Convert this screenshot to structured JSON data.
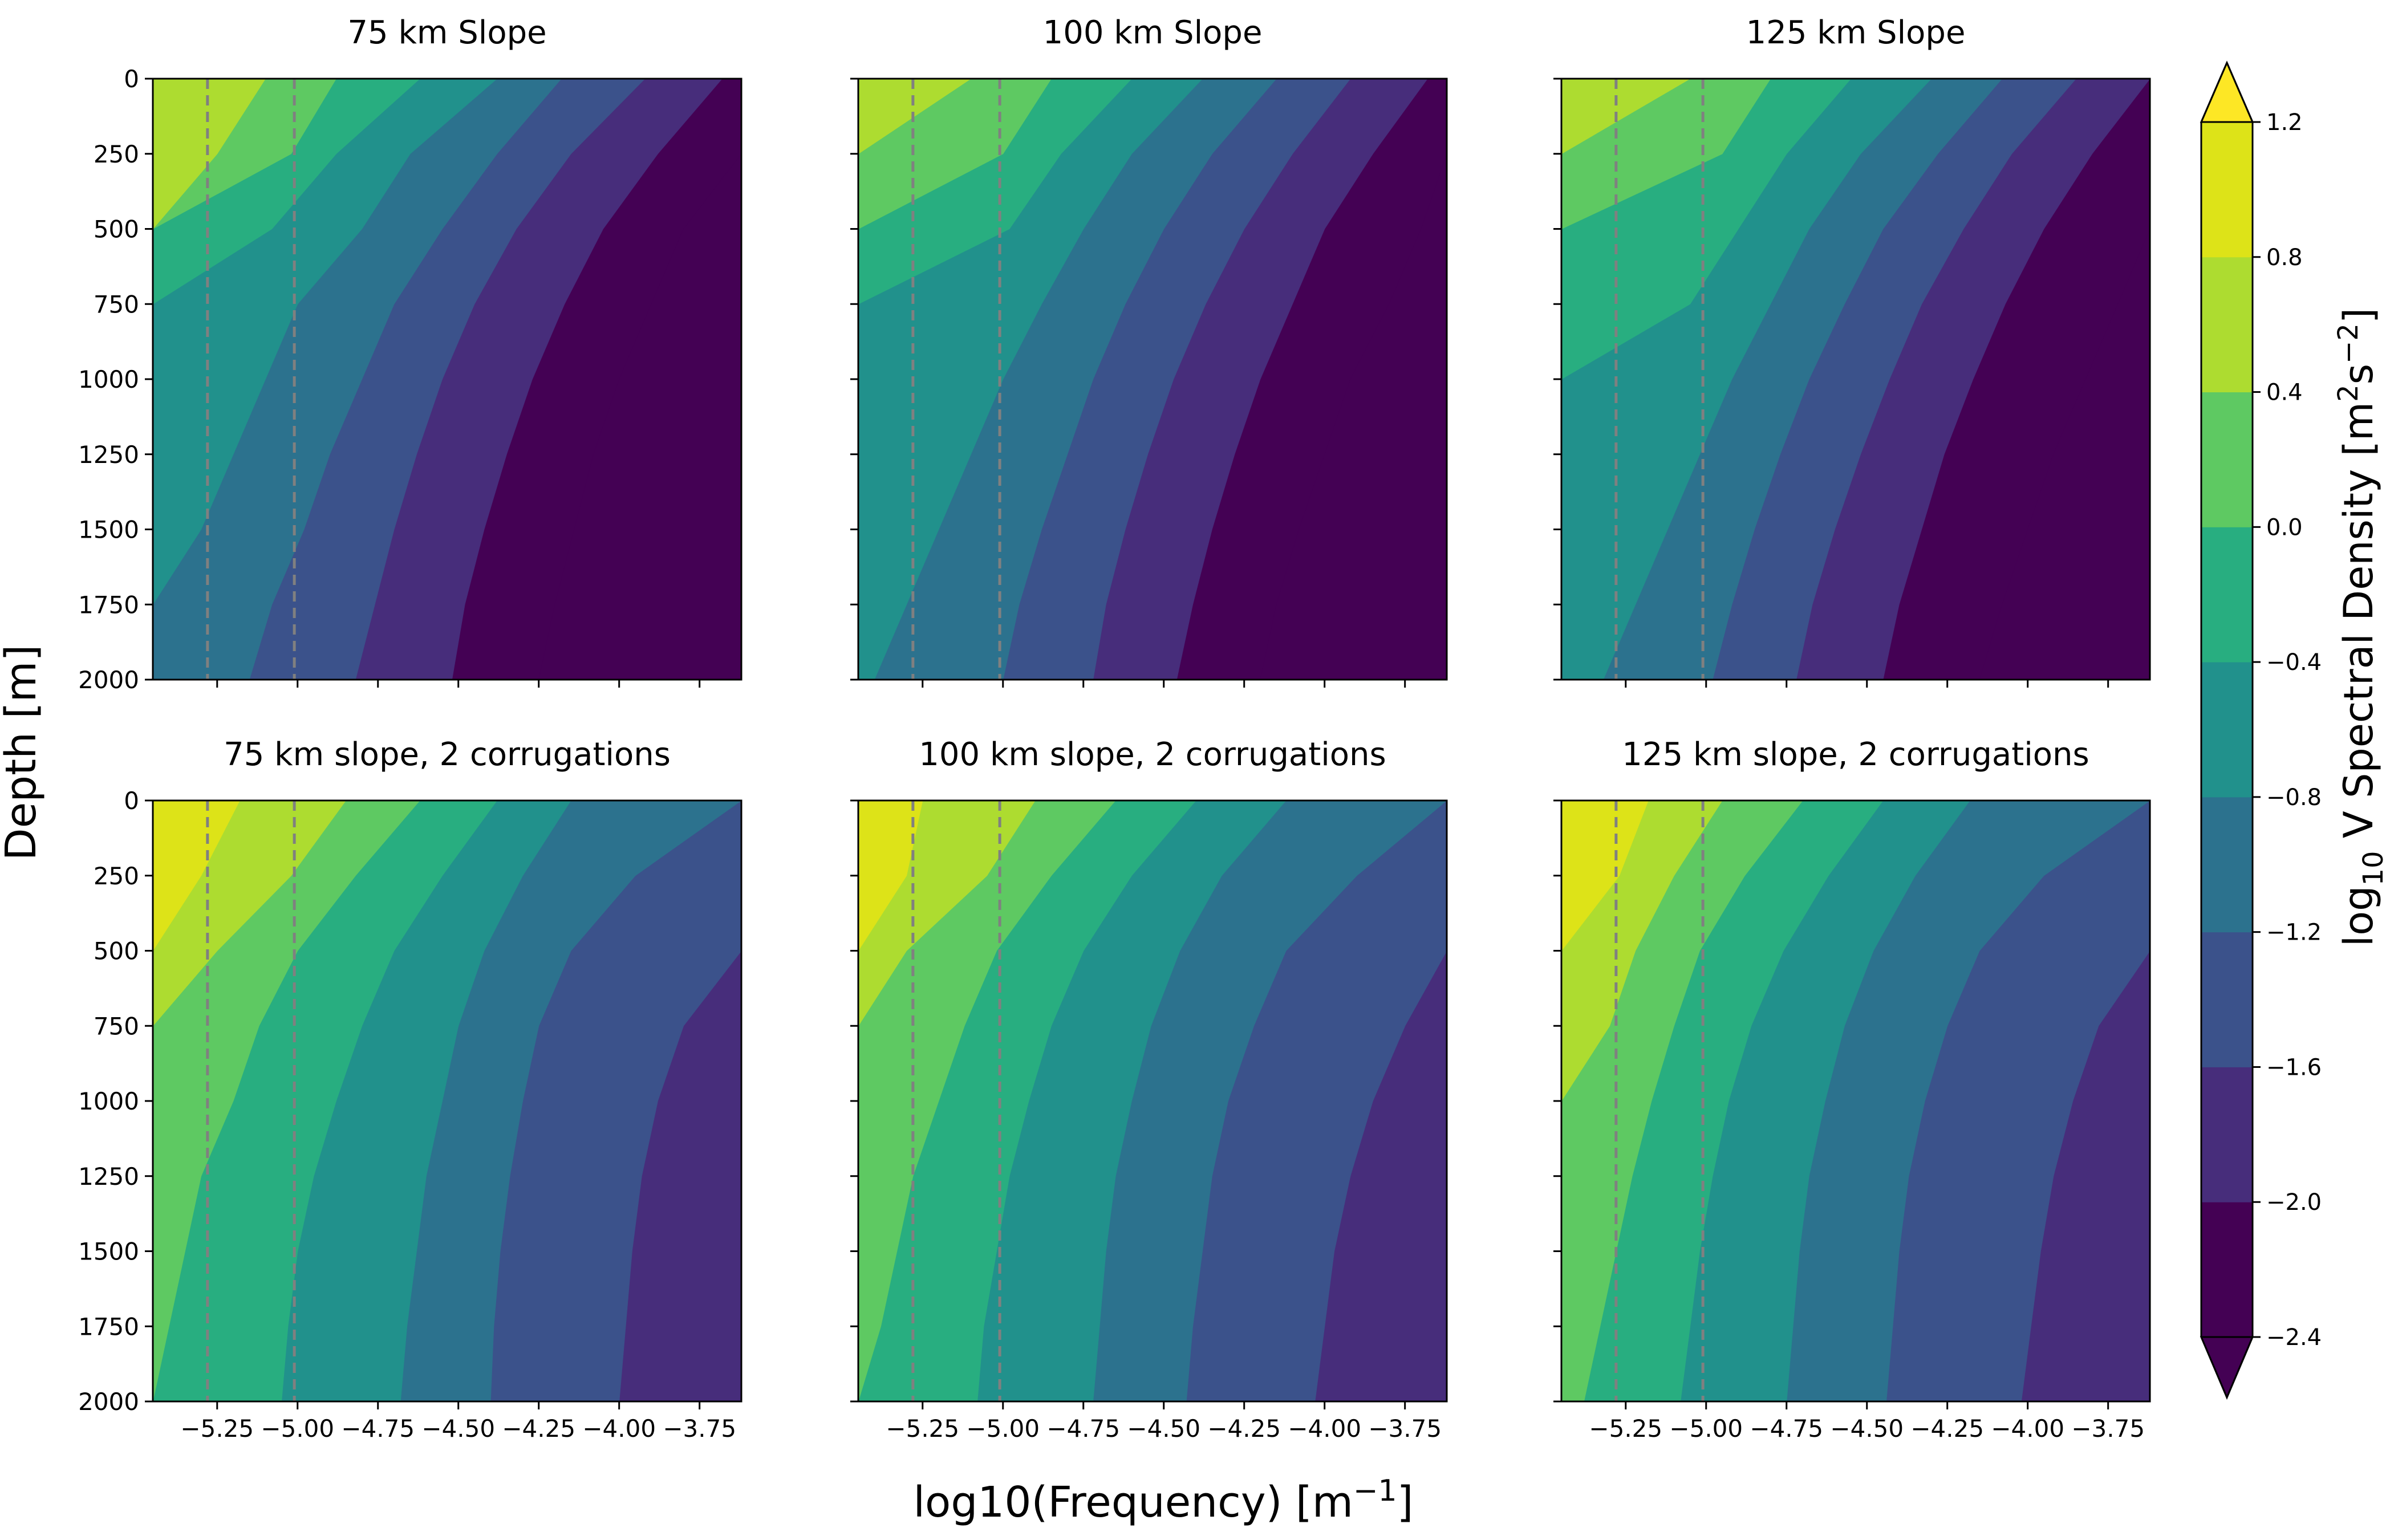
{
  "figure": {
    "ylabel": "Depth [m]",
    "xlabel_main": "log10(Frequency) [m",
    "xlabel_sup": "−1",
    "xlabel_end": "]"
  },
  "colorbar": {
    "label_pre": "log",
    "label_sub": "10",
    "label_mid": " V Spectral Density [m",
    "label_sup1": "2",
    "label_s": "s",
    "label_sup2": "−2",
    "label_end": "]",
    "levels": [
      -2.4,
      -2.0,
      -1.6,
      -1.2,
      -0.8,
      -0.4,
      0.0,
      0.4,
      0.8,
      1.2
    ],
    "tick_labels": [
      "−2.4",
      "−2.0",
      "−1.6",
      "−1.2",
      "−0.8",
      "−0.4",
      "0.0",
      "0.4",
      "0.8",
      "1.2"
    ],
    "band_colors": [
      "#440154",
      "#472d7b",
      "#3b528b",
      "#2c728e",
      "#21918c",
      "#28ae80",
      "#5ec962",
      "#addc30",
      "#dde318"
    ],
    "extend_under_color": "#440154",
    "extend_over_color": "#fde725"
  },
  "chart_data": [
    {
      "type": "contourf",
      "title": "75 km Slope",
      "xlabel": "",
      "ylabel": "Depth [m]",
      "xlim": [
        -5.45,
        -3.62
      ],
      "ylim": [
        2000,
        0
      ],
      "xticks": [
        -5.25,
        -5.0,
        -4.75,
        -4.5,
        -4.25,
        -4.0,
        -3.75
      ],
      "xtick_labels": [],
      "yticks": [
        0,
        250,
        500,
        750,
        1000,
        1250,
        1500,
        1750,
        2000
      ],
      "ytick_labels": [
        "0",
        "250",
        "500",
        "750",
        "1000",
        "1250",
        "1500",
        "1750",
        "2000"
      ],
      "vlines": [
        -5.28,
        -5.01
      ],
      "depth_samples": [
        0,
        250,
        500,
        750,
        1000,
        1250,
        1500,
        1750,
        2000
      ],
      "contour_boundaries": [
        {
          "upper_level": 0.8,
          "x": [
            -5.1,
            -5.25,
            -5.45,
            -5.45,
            -5.45,
            -5.45,
            -5.45,
            -5.45,
            -5.45
          ]
        },
        {
          "upper_level": 0.4,
          "x": [
            -4.88,
            -5.02,
            -5.45,
            -5.45,
            -5.45,
            -5.45,
            -5.45,
            -5.45,
            -5.45
          ]
        },
        {
          "upper_level": 0.0,
          "x": [
            -4.62,
            -4.88,
            -5.08,
            -5.45,
            -5.45,
            -5.45,
            -5.45,
            -5.45,
            -5.45
          ]
        },
        {
          "upper_level": -0.4,
          "x": [
            -4.38,
            -4.65,
            -4.8,
            -5.0,
            -5.1,
            -5.2,
            -5.3,
            -5.45,
            -5.45
          ]
        },
        {
          "upper_level": -0.8,
          "x": [
            -4.18,
            -4.38,
            -4.55,
            -4.7,
            -4.8,
            -4.9,
            -4.98,
            -5.08,
            -5.15
          ]
        },
        {
          "upper_level": -1.2,
          "x": [
            -3.92,
            -4.15,
            -4.32,
            -4.45,
            -4.55,
            -4.63,
            -4.7,
            -4.76,
            -4.82
          ]
        },
        {
          "upper_level": -1.6,
          "x": [
            -3.68,
            -3.88,
            -4.05,
            -4.17,
            -4.27,
            -4.35,
            -4.42,
            -4.48,
            -4.52
          ]
        },
        {
          "upper_level": -2.0,
          "x": [
            -3.62,
            -3.62,
            -3.8,
            -3.9,
            -4.0,
            -4.08,
            -4.14,
            -4.2,
            -4.25
          ]
        }
      ]
    },
    {
      "type": "contourf",
      "title": "100 km Slope",
      "xlabel": "",
      "ylabel": "",
      "xlim": [
        -5.45,
        -3.62
      ],
      "ylim": [
        2000,
        0
      ],
      "xticks": [
        -5.25,
        -5.0,
        -4.75,
        -4.5,
        -4.25,
        -4.0,
        -3.75
      ],
      "xtick_labels": [],
      "yticks": [
        0,
        250,
        500,
        750,
        1000,
        1250,
        1500,
        1750,
        2000
      ],
      "ytick_labels": [],
      "vlines": [
        -5.28,
        -5.01
      ],
      "depth_samples": [
        0,
        250,
        500,
        750,
        1000,
        1250,
        1500,
        1750,
        2000
      ],
      "contour_boundaries": [
        {
          "upper_level": 0.8,
          "x": [
            -5.1,
            -5.45,
            -5.45,
            -5.45,
            -5.45,
            -5.45,
            -5.45,
            -5.45,
            -5.45
          ]
        },
        {
          "upper_level": 0.4,
          "x": [
            -4.85,
            -5.0,
            -5.45,
            -5.45,
            -5.45,
            -5.45,
            -5.45,
            -5.45,
            -5.45
          ]
        },
        {
          "upper_level": 0.0,
          "x": [
            -4.6,
            -4.82,
            -4.98,
            -5.45,
            -5.45,
            -5.45,
            -5.45,
            -5.45,
            -5.45
          ]
        },
        {
          "upper_level": -0.4,
          "x": [
            -4.38,
            -4.6,
            -4.75,
            -4.88,
            -5.0,
            -5.1,
            -5.2,
            -5.3,
            -5.4
          ]
        },
        {
          "upper_level": -0.8,
          "x": [
            -4.15,
            -4.35,
            -4.5,
            -4.62,
            -4.72,
            -4.8,
            -4.88,
            -4.95,
            -5.0
          ]
        },
        {
          "upper_level": -1.2,
          "x": [
            -3.92,
            -4.1,
            -4.25,
            -4.37,
            -4.47,
            -4.55,
            -4.62,
            -4.68,
            -4.72
          ]
        },
        {
          "upper_level": -1.6,
          "x": [
            -3.68,
            -3.85,
            -4.0,
            -4.1,
            -4.2,
            -4.28,
            -4.35,
            -4.41,
            -4.46
          ]
        },
        {
          "upper_level": -2.0,
          "x": [
            -3.62,
            -3.62,
            -3.7,
            -3.8,
            -3.92,
            -4.0,
            -4.08,
            -4.15,
            -4.2
          ]
        }
      ]
    },
    {
      "type": "contourf",
      "title": "125 km Slope",
      "xlabel": "",
      "ylabel": "",
      "xlim": [
        -5.45,
        -3.62
      ],
      "ylim": [
        2000,
        0
      ],
      "xticks": [
        -5.25,
        -5.0,
        -4.75,
        -4.5,
        -4.25,
        -4.0,
        -3.75
      ],
      "xtick_labels": [],
      "yticks": [
        0,
        250,
        500,
        750,
        1000,
        1250,
        1500,
        1750,
        2000
      ],
      "ytick_labels": [],
      "vlines": [
        -5.28,
        -5.01
      ],
      "depth_samples": [
        0,
        250,
        500,
        750,
        1000,
        1250,
        1500,
        1750,
        2000
      ],
      "contour_boundaries": [
        {
          "upper_level": 0.8,
          "x": [
            -5.05,
            -5.45,
            -5.45,
            -5.45,
            -5.45,
            -5.45,
            -5.45,
            -5.45,
            -5.45
          ]
        },
        {
          "upper_level": 0.4,
          "x": [
            -4.8,
            -4.95,
            -5.45,
            -5.45,
            -5.45,
            -5.45,
            -5.45,
            -5.45,
            -5.45
          ]
        },
        {
          "upper_level": 0.0,
          "x": [
            -4.55,
            -4.75,
            -4.9,
            -5.05,
            -5.45,
            -5.45,
            -5.45,
            -5.45,
            -5.45
          ]
        },
        {
          "upper_level": -0.4,
          "x": [
            -4.3,
            -4.52,
            -4.68,
            -4.8,
            -4.92,
            -5.02,
            -5.12,
            -5.22,
            -5.32
          ]
        },
        {
          "upper_level": -0.8,
          "x": [
            -4.08,
            -4.28,
            -4.45,
            -4.57,
            -4.68,
            -4.77,
            -4.85,
            -4.92,
            -4.98
          ]
        },
        {
          "upper_level": -1.2,
          "x": [
            -3.85,
            -4.05,
            -4.2,
            -4.33,
            -4.43,
            -4.52,
            -4.6,
            -4.67,
            -4.72
          ]
        },
        {
          "upper_level": -1.6,
          "x": [
            -3.62,
            -3.8,
            -3.95,
            -4.07,
            -4.17,
            -4.26,
            -4.33,
            -4.4,
            -4.45
          ]
        },
        {
          "upper_level": -2.0,
          "x": [
            -3.62,
            -3.62,
            -3.62,
            -3.72,
            -3.82,
            -3.92,
            -4.0,
            -4.08,
            -4.15
          ]
        }
      ]
    },
    {
      "type": "contourf",
      "title": "75 km slope, 2 corrugations",
      "xlabel": "",
      "ylabel": "Depth [m]",
      "xlim": [
        -5.45,
        -3.62
      ],
      "ylim": [
        2000,
        0
      ],
      "xticks": [
        -5.25,
        -5.0,
        -4.75,
        -4.5,
        -4.25,
        -4.0,
        -3.75
      ],
      "xtick_labels": [
        "−5.25",
        "−5.00",
        "−4.75",
        "−4.50",
        "−4.25",
        "−4.00",
        "−3.75"
      ],
      "yticks": [
        0,
        250,
        500,
        750,
        1000,
        1250,
        1500,
        1750,
        2000
      ],
      "ytick_labels": [
        "0",
        "250",
        "500",
        "750",
        "1000",
        "1250",
        "1500",
        "1750",
        "2000"
      ],
      "vlines": [
        -5.28,
        -5.01
      ],
      "depth_samples": [
        0,
        250,
        500,
        750,
        1000,
        1250,
        1500,
        1750,
        2000
      ],
      "contour_boundaries": [
        {
          "upper_level": 1.2,
          "x": [
            -5.18,
            -5.3,
            -5.45,
            -5.45,
            -5.45,
            -5.45,
            -5.45,
            -5.45,
            -5.45
          ]
        },
        {
          "upper_level": 0.8,
          "x": [
            -4.85,
            -5.02,
            -5.25,
            -5.45,
            -5.45,
            -5.45,
            -5.45,
            -5.45,
            -5.45
          ]
        },
        {
          "upper_level": 0.4,
          "x": [
            -4.62,
            -4.82,
            -5.0,
            -5.12,
            -5.2,
            -5.3,
            -5.35,
            -5.4,
            -5.45
          ]
        },
        {
          "upper_level": 0.0,
          "x": [
            -4.38,
            -4.55,
            -4.7,
            -4.8,
            -4.88,
            -4.95,
            -5.0,
            -5.03,
            -5.05
          ]
        },
        {
          "upper_level": -0.4,
          "x": [
            -4.15,
            -4.3,
            -4.42,
            -4.5,
            -4.55,
            -4.6,
            -4.63,
            -4.66,
            -4.68
          ]
        },
        {
          "upper_level": -0.8,
          "x": [
            -3.62,
            -3.95,
            -4.15,
            -4.25,
            -4.3,
            -4.34,
            -4.37,
            -4.39,
            -4.4
          ]
        },
        {
          "upper_level": -1.2,
          "x": [
            -3.62,
            -3.62,
            -3.62,
            -3.8,
            -3.88,
            -3.93,
            -3.96,
            -3.98,
            -4.0
          ]
        }
      ]
    },
    {
      "type": "contourf",
      "title": "100 km slope, 2 corrugations",
      "xlabel": "",
      "ylabel": "",
      "xlim": [
        -5.45,
        -3.62
      ],
      "ylim": [
        2000,
        0
      ],
      "xticks": [
        -5.25,
        -5.0,
        -4.75,
        -4.5,
        -4.25,
        -4.0,
        -3.75
      ],
      "xtick_labels": [
        "−5.25",
        "−5.00",
        "−4.75",
        "−4.50",
        "−4.25",
        "−4.00",
        "−3.75"
      ],
      "yticks": [
        0,
        250,
        500,
        750,
        1000,
        1250,
        1500,
        1750,
        2000
      ],
      "ytick_labels": [],
      "vlines": [
        -5.28,
        -5.01
      ],
      "depth_samples": [
        0,
        250,
        500,
        750,
        1000,
        1250,
        1500,
        1750,
        2000
      ],
      "contour_boundaries": [
        {
          "upper_level": 1.2,
          "x": [
            -5.25,
            -5.3,
            -5.45,
            -5.45,
            -5.45,
            -5.45,
            -5.45,
            -5.45,
            -5.45
          ]
        },
        {
          "upper_level": 0.8,
          "x": [
            -4.9,
            -5.05,
            -5.3,
            -5.45,
            -5.45,
            -5.45,
            -5.45,
            -5.45,
            -5.45
          ]
        },
        {
          "upper_level": 0.4,
          "x": [
            -4.65,
            -4.85,
            -5.02,
            -5.12,
            -5.2,
            -5.28,
            -5.33,
            -5.38,
            -5.45
          ]
        },
        {
          "upper_level": 0.0,
          "x": [
            -4.4,
            -4.6,
            -4.75,
            -4.85,
            -4.92,
            -4.98,
            -5.02,
            -5.06,
            -5.08
          ]
        },
        {
          "upper_level": -0.4,
          "x": [
            -4.12,
            -4.32,
            -4.45,
            -4.54,
            -4.6,
            -4.65,
            -4.68,
            -4.7,
            -4.72
          ]
        },
        {
          "upper_level": -0.8,
          "x": [
            -3.62,
            -3.9,
            -4.12,
            -4.22,
            -4.3,
            -4.35,
            -4.38,
            -4.41,
            -4.43
          ]
        },
        {
          "upper_level": -1.2,
          "x": [
            -3.62,
            -3.62,
            -3.62,
            -3.75,
            -3.85,
            -3.92,
            -3.97,
            -4.0,
            -4.03
          ]
        }
      ]
    },
    {
      "type": "contourf",
      "title": "125 km slope, 2 corrugations",
      "xlabel": "",
      "ylabel": "",
      "xlim": [
        -5.45,
        -3.62
      ],
      "ylim": [
        2000,
        0
      ],
      "xticks": [
        -5.25,
        -5.0,
        -4.75,
        -4.5,
        -4.25,
        -4.0,
        -3.75
      ],
      "xtick_labels": [
        "−5.25",
        "−5.00",
        "−4.75",
        "−4.50",
        "−4.25",
        "−4.00",
        "−3.75"
      ],
      "yticks": [
        0,
        250,
        500,
        750,
        1000,
        1250,
        1500,
        1750,
        2000
      ],
      "ytick_labels": [],
      "vlines": [
        -5.28,
        -5.01
      ],
      "depth_samples": [
        0,
        250,
        500,
        750,
        1000,
        1250,
        1500,
        1750,
        2000
      ],
      "contour_boundaries": [
        {
          "upper_level": 1.2,
          "x": [
            -5.18,
            -5.27,
            -5.45,
            -5.45,
            -5.45,
            -5.45,
            -5.45,
            -5.45,
            -5.45
          ]
        },
        {
          "upper_level": 0.8,
          "x": [
            -4.95,
            -5.1,
            -5.22,
            -5.3,
            -5.45,
            -5.45,
            -5.45,
            -5.45,
            -5.45
          ]
        },
        {
          "upper_level": 0.4,
          "x": [
            -4.7,
            -4.88,
            -5.02,
            -5.1,
            -5.17,
            -5.23,
            -5.28,
            -5.33,
            -5.38
          ]
        },
        {
          "upper_level": 0.0,
          "x": [
            -4.45,
            -4.62,
            -4.76,
            -4.86,
            -4.93,
            -4.98,
            -5.02,
            -5.05,
            -5.08
          ]
        },
        {
          "upper_level": -0.4,
          "x": [
            -4.18,
            -4.35,
            -4.48,
            -4.57,
            -4.63,
            -4.68,
            -4.71,
            -4.73,
            -4.75
          ]
        },
        {
          "upper_level": -0.8,
          "x": [
            -3.62,
            -3.95,
            -4.15,
            -4.25,
            -4.32,
            -4.37,
            -4.4,
            -4.42,
            -4.44
          ]
        },
        {
          "upper_level": -1.2,
          "x": [
            -3.62,
            -3.62,
            -3.62,
            -3.78,
            -3.86,
            -3.92,
            -3.96,
            -3.99,
            -4.02
          ]
        }
      ]
    }
  ]
}
